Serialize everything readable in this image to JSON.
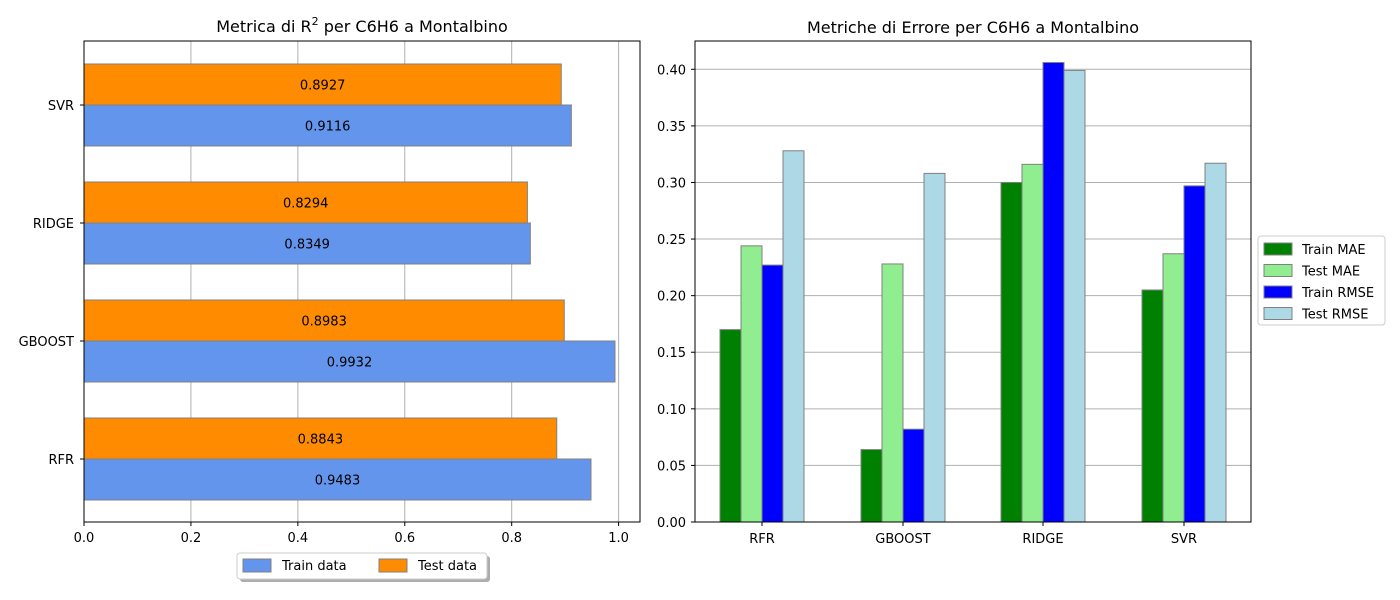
{
  "chart_data": [
    {
      "type": "bar",
      "orientation": "horizontal",
      "title_main": "Metrica di R",
      "title_sup": "2",
      "title_rest": " per C6H6 a Montalbino",
      "categories": [
        "RFR",
        "GBOOST",
        "RIDGE",
        "SVR"
      ],
      "series": [
        {
          "name": "Train data",
          "values": [
            0.9483,
            0.9932,
            0.8349,
            0.9116
          ],
          "color": "#6495ed"
        },
        {
          "name": "Test data",
          "values": [
            0.8843,
            0.8983,
            0.8294,
            0.8927
          ],
          "color": "#ff8c00"
        }
      ],
      "data_labels": {
        "train": [
          "0.9483",
          "0.9932",
          "0.8349",
          "0.9116"
        ],
        "test": [
          "0.8843",
          "0.8983",
          "0.8294",
          "0.8927"
        ]
      },
      "xlim": [
        0,
        1.04
      ],
      "xticks": [
        "0.0",
        "0.2",
        "0.4",
        "0.6",
        "0.8",
        "1.0"
      ],
      "grid": true,
      "legend_position": "bottom-center, below axes"
    },
    {
      "type": "bar",
      "title": "Metriche di Errore per C6H6 a Montalbino",
      "categories": [
        "RFR",
        "GBOOST",
        "RIDGE",
        "SVR"
      ],
      "series": [
        {
          "name": "Train MAE",
          "values": [
            0.17,
            0.064,
            0.3,
            0.205
          ],
          "color": "#008000"
        },
        {
          "name": "Test MAE",
          "values": [
            0.244,
            0.228,
            0.316,
            0.237
          ],
          "color": "#90ee90"
        },
        {
          "name": "Train RMSE",
          "values": [
            0.227,
            0.082,
            0.406,
            0.297
          ],
          "color": "#0000ff"
        },
        {
          "name": "Test RMSE",
          "values": [
            0.328,
            0.308,
            0.399,
            0.317
          ],
          "color": "#add8e6"
        }
      ],
      "ylim": [
        0,
        0.425
      ],
      "yticks": [
        "0.00",
        "0.05",
        "0.10",
        "0.15",
        "0.20",
        "0.25",
        "0.30",
        "0.35",
        "0.40"
      ],
      "grid": "y-axis only",
      "legend_position": "right, outside axes"
    }
  ]
}
